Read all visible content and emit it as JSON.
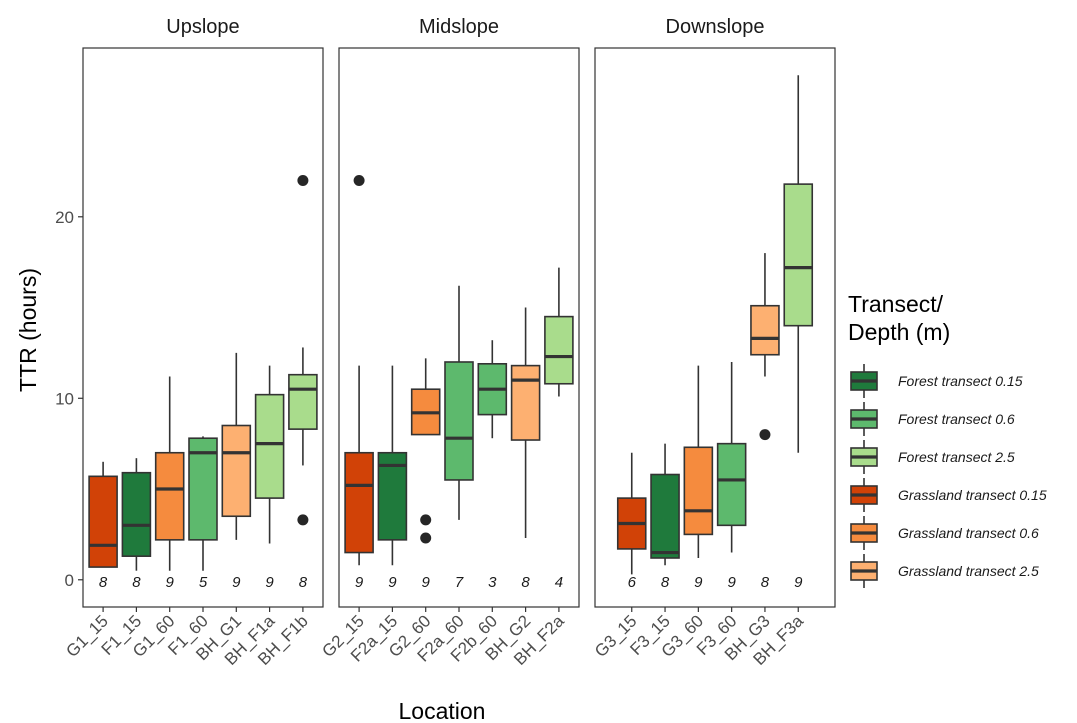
{
  "chart_data": {
    "type": "box",
    "ylabel": "TTR (hours)",
    "xlabel": "Location",
    "y_ticks": [
      0,
      10,
      20
    ],
    "ylim": [
      -1.5,
      29.3
    ],
    "legend": {
      "title": [
        "Transect/",
        "Depth (m)"
      ],
      "placement": "right",
      "entries": [
        {
          "label": "Forest transect 0.15",
          "color": "#1f7a3c"
        },
        {
          "label": "Forest transect 0.6",
          "color": "#5db96d"
        },
        {
          "label": "Forest transect 2.5",
          "color": "#a9dc8c"
        },
        {
          "label": "Grassland transect 0.15",
          "color": "#d14207"
        },
        {
          "label": "Grassland transect 0.6",
          "color": "#f58b3e"
        },
        {
          "label": "Grassland transect 2.5",
          "color": "#fdb071"
        }
      ]
    },
    "panels": [
      {
        "title": "Upslope",
        "boxes": [
          {
            "label": "G1_15",
            "group": 3,
            "n": "8",
            "min": 0.7,
            "q1": 0.7,
            "median": 1.9,
            "q3": 5.7,
            "max": 6.5,
            "outliers": []
          },
          {
            "label": "F1_15",
            "group": 0,
            "n": "8",
            "min": 0.5,
            "q1": 1.3,
            "median": 3.0,
            "q3": 5.9,
            "max": 6.7,
            "outliers": []
          },
          {
            "label": "G1_60",
            "group": 4,
            "n": "9",
            "min": 0.5,
            "q1": 2.2,
            "median": 5.0,
            "q3": 7.0,
            "max": 11.2,
            "outliers": []
          },
          {
            "label": "F1_60",
            "group": 1,
            "n": "5",
            "min": 0.5,
            "q1": 2.2,
            "median": 7.0,
            "q3": 7.8,
            "max": 7.9,
            "outliers": []
          },
          {
            "label": "BH_G1",
            "group": 5,
            "n": "9",
            "min": 2.2,
            "q1": 3.5,
            "median": 7.0,
            "q3": 8.5,
            "max": 12.5,
            "outliers": []
          },
          {
            "label": "BH_F1a",
            "group": 2,
            "n": "9",
            "min": 2.0,
            "q1": 4.5,
            "median": 7.5,
            "q3": 10.2,
            "max": 11.8,
            "outliers": []
          },
          {
            "label": "BH_F1b",
            "group": 2,
            "n": "8",
            "min": 6.3,
            "q1": 8.3,
            "median": 10.5,
            "q3": 11.3,
            "max": 12.8,
            "outliers": [
              22.0,
              3.3
            ]
          }
        ]
      },
      {
        "title": "Midslope",
        "boxes": [
          {
            "label": "G2_15",
            "group": 3,
            "n": "9",
            "min": 0.8,
            "q1": 1.5,
            "median": 5.2,
            "q3": 7.0,
            "max": 11.8,
            "outliers": [
              22.0
            ]
          },
          {
            "label": "F2a_15",
            "group": 0,
            "n": "9",
            "min": 0.8,
            "q1": 2.2,
            "median": 6.3,
            "q3": 7.0,
            "max": 11.8,
            "outliers": []
          },
          {
            "label": "G2_60",
            "group": 4,
            "n": "9",
            "min": 8.0,
            "q1": 8.0,
            "median": 9.2,
            "q3": 10.5,
            "max": 12.2,
            "outliers": [
              3.3,
              2.3
            ]
          },
          {
            "label": "F2a_60",
            "group": 1,
            "n": "7",
            "min": 3.3,
            "q1": 5.5,
            "median": 7.8,
            "q3": 12.0,
            "max": 16.2,
            "outliers": []
          },
          {
            "label": "F2b_60",
            "group": 1,
            "n": "3",
            "min": 7.8,
            "q1": 9.1,
            "median": 10.5,
            "q3": 11.9,
            "max": 13.2,
            "outliers": []
          },
          {
            "label": "BH_G2",
            "group": 5,
            "n": "8",
            "min": 2.3,
            "q1": 7.7,
            "median": 11.0,
            "q3": 11.8,
            "max": 15.0,
            "outliers": []
          },
          {
            "label": "BH_F2a",
            "group": 2,
            "n": "4",
            "min": 10.1,
            "q1": 10.8,
            "median": 12.3,
            "q3": 14.5,
            "max": 17.2,
            "outliers": []
          }
        ]
      },
      {
        "title": "Downslope",
        "boxes": [
          {
            "label": "G3_15",
            "group": 3,
            "n": "6",
            "min": 0.3,
            "q1": 1.7,
            "median": 3.1,
            "q3": 4.5,
            "max": 7.0,
            "outliers": []
          },
          {
            "label": "F3_15",
            "group": 0,
            "n": "8",
            "min": 0.8,
            "q1": 1.2,
            "median": 1.5,
            "q3": 5.8,
            "max": 7.5,
            "outliers": []
          },
          {
            "label": "G3_60",
            "group": 4,
            "n": "9",
            "min": 1.2,
            "q1": 2.5,
            "median": 3.8,
            "q3": 7.3,
            "max": 11.8,
            "outliers": []
          },
          {
            "label": "F3_60",
            "group": 1,
            "n": "9",
            "min": 1.5,
            "q1": 3.0,
            "median": 5.5,
            "q3": 7.5,
            "max": 12.0,
            "outliers": []
          },
          {
            "label": "BH_G3",
            "group": 5,
            "n": "8",
            "min": 11.2,
            "q1": 12.4,
            "median": 13.3,
            "q3": 15.1,
            "max": 18.0,
            "outliers": [
              8.0
            ]
          },
          {
            "label": "BH_F3a",
            "group": 2,
            "n": "9",
            "min": 7.0,
            "q1": 14.0,
            "median": 17.2,
            "q3": 21.8,
            "max": 27.8,
            "outliers": []
          }
        ]
      }
    ]
  }
}
